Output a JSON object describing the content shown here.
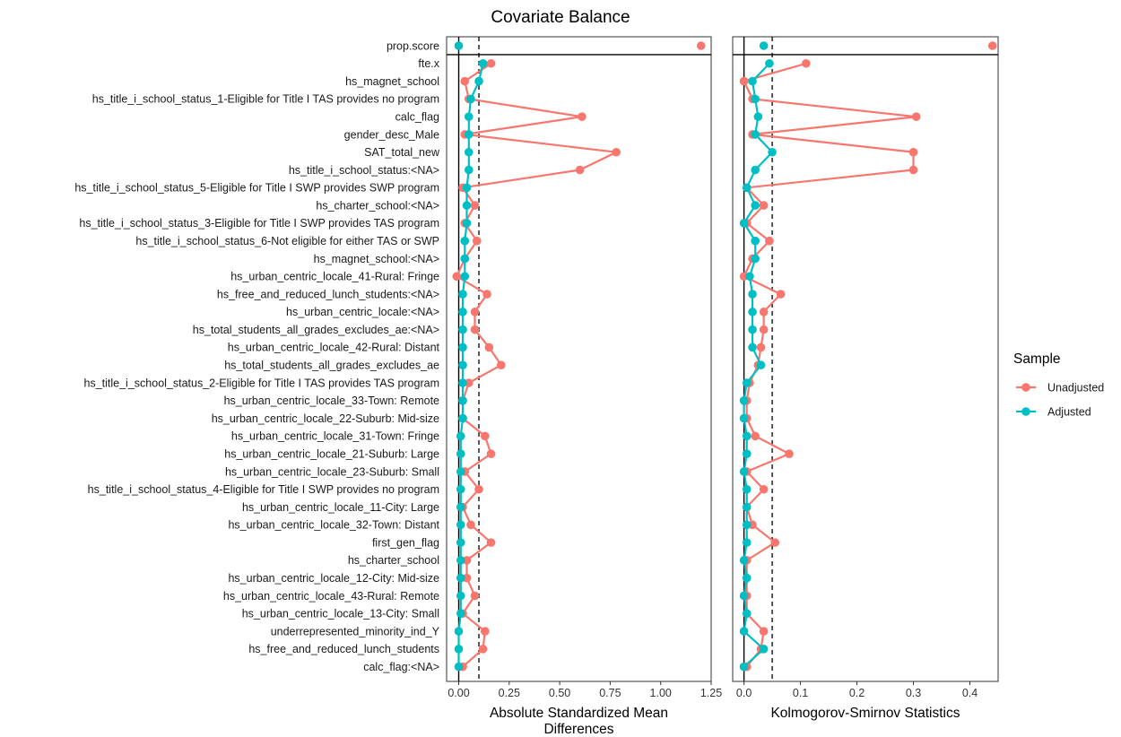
{
  "chart_data": {
    "type": "scatter",
    "title": "Covariate Balance",
    "variables": [
      "prop.score",
      "fte.x",
      "hs_magnet_school",
      "hs_title_i_school_status_1-Eligible for Title I TAS provides no program",
      "calc_flag",
      "gender_desc_Male",
      "SAT_total_new",
      "hs_title_i_school_status:<NA>",
      "hs_title_i_school_status_5-Eligible for Title I SWP provides SWP program",
      "hs_charter_school:<NA>",
      "hs_title_i_school_status_3-Eligible for Title I SWP provides TAS program",
      "hs_title_i_school_status_6-Not eligible for either TAS or SWP",
      "hs_magnet_school:<NA>",
      "hs_urban_centric_locale_41-Rural: Fringe",
      "hs_free_and_reduced_lunch_students:<NA>",
      "hs_urban_centric_locale:<NA>",
      "hs_total_students_all_grades_excludes_ae:<NA>",
      "hs_urban_centric_locale_42-Rural: Distant",
      "hs_total_students_all_grades_excludes_ae",
      "hs_title_i_school_status_2-Eligible for Title I TAS provides TAS program",
      "hs_urban_centric_locale_33-Town: Remote",
      "hs_urban_centric_locale_22-Suburb: Mid-size",
      "hs_urban_centric_locale_31-Town: Fringe",
      "hs_urban_centric_locale_21-Suburb: Large",
      "hs_urban_centric_locale_23-Suburb: Small",
      "hs_title_i_school_status_4-Eligible for Title I SWP provides no program",
      "hs_urban_centric_locale_11-City: Large",
      "hs_urban_centric_locale_32-Town: Distant",
      "first_gen_flag",
      "hs_charter_school",
      "hs_urban_centric_locale_12-City: Mid-size",
      "hs_urban_centric_locale_43-Rural: Remote",
      "hs_urban_centric_locale_13-City: Small",
      "underrepresented_minority_ind_Y",
      "hs_free_and_reduced_lunch_students",
      "calc_flag:<NA>"
    ],
    "panels": [
      {
        "xlabel": "Absolute Standardized Mean Differences",
        "xlim": [
          -0.06,
          1.25
        ],
        "ticks": [
          0.0,
          0.25,
          0.5,
          0.75,
          1.0,
          1.25
        ],
        "tick_labels": [
          "0.00",
          "0.25",
          "0.50",
          "0.75",
          "1.00",
          "1.25"
        ],
        "threshold": 0.1,
        "series": [
          {
            "name": "Unadjusted",
            "values": [
              1.2,
              0.16,
              0.03,
              0.05,
              0.61,
              0.03,
              0.78,
              0.6,
              0.02,
              0.08,
              0.03,
              0.09,
              0.03,
              -0.01,
              0.14,
              0.08,
              0.08,
              0.15,
              0.21,
              0.05,
              0.02,
              0.02,
              0.13,
              0.16,
              0.03,
              0.1,
              0.02,
              0.06,
              0.16,
              0.04,
              0.04,
              0.08,
              0.02,
              0.13,
              0.12,
              0.02
            ]
          },
          {
            "name": "Adjusted",
            "values": [
              0.0,
              0.12,
              0.1,
              0.06,
              0.05,
              0.05,
              0.05,
              0.05,
              0.04,
              0.04,
              0.04,
              0.03,
              0.03,
              0.03,
              0.02,
              0.02,
              0.02,
              0.02,
              0.02,
              0.02,
              0.02,
              0.02,
              0.01,
              0.01,
              0.01,
              0.01,
              0.01,
              0.01,
              0.01,
              0.01,
              0.01,
              0.01,
              0.01,
              0.0,
              0.0,
              0.0
            ]
          }
        ]
      },
      {
        "xlabel": "Kolmogorov-Smirnov Statistics",
        "xlim": [
          -0.02,
          0.45
        ],
        "ticks": [
          0.0,
          0.1,
          0.2,
          0.3,
          0.4
        ],
        "tick_labels": [
          "0.0",
          "0.1",
          "0.2",
          "0.3",
          "0.4"
        ],
        "threshold": 0.05,
        "series": [
          {
            "name": "Unadjusted",
            "values": [
              0.44,
              0.11,
              0.0,
              0.015,
              0.305,
              0.015,
              0.3,
              0.3,
              0.005,
              0.035,
              0.005,
              0.045,
              0.015,
              0.0,
              0.065,
              0.035,
              0.035,
              0.03,
              0.025,
              0.01,
              0.005,
              0.005,
              0.02,
              0.08,
              0.005,
              0.035,
              0.005,
              0.015,
              0.055,
              0.005,
              0.005,
              0.005,
              0.005,
              0.035,
              0.03,
              0.005
            ]
          },
          {
            "name": "Adjusted",
            "values": [
              0.035,
              0.045,
              0.015,
              0.02,
              0.025,
              0.02,
              0.05,
              0.02,
              0.005,
              0.02,
              0.0,
              0.02,
              0.02,
              0.01,
              0.015,
              0.015,
              0.015,
              0.015,
              0.03,
              0.005,
              0.0,
              0.0,
              0.005,
              0.005,
              0.0,
              0.005,
              0.005,
              0.005,
              0.005,
              0.0,
              0.005,
              0.0,
              0.005,
              0.0,
              0.035,
              0.0
            ]
          }
        ]
      }
    ],
    "legend": {
      "title": "Sample",
      "position": "right",
      "entries": [
        "Unadjusted",
        "Adjusted"
      ]
    },
    "colors": {
      "Unadjusted": "#F8766D",
      "Adjusted": "#00BFC4"
    },
    "grid": false
  }
}
